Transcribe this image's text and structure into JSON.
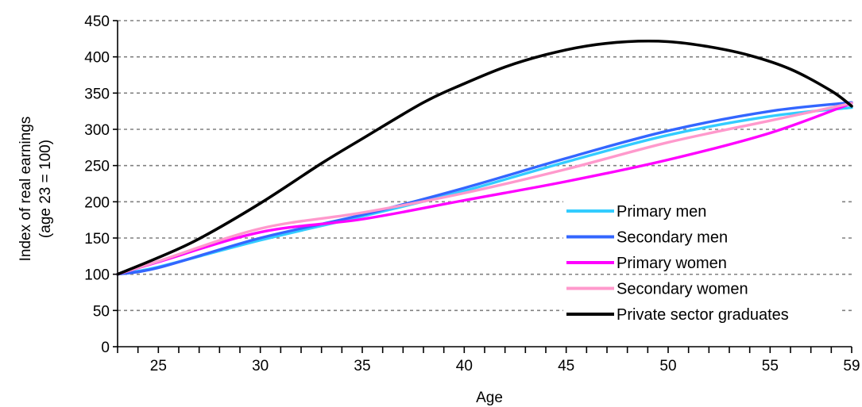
{
  "chart_data": {
    "type": "line",
    "title": "",
    "xlabel": "Age",
    "ylabel": [
      "Index of real earnings",
      "(age 23 = 100)"
    ],
    "xlim": [
      23,
      59
    ],
    "ylim": [
      0,
      450
    ],
    "x_ticks": [
      25,
      30,
      35,
      40,
      45,
      50,
      55,
      59
    ],
    "y_ticks": [
      0,
      50,
      100,
      150,
      200,
      250,
      300,
      350,
      400,
      450
    ],
    "grid": "horizontal-dotted",
    "legend_position": "bottom-right",
    "series": [
      {
        "name": "Primary men",
        "color": "#33ccff",
        "points": [
          [
            23,
            100
          ],
          [
            25,
            110
          ],
          [
            30,
            147
          ],
          [
            35,
            180
          ],
          [
            40,
            215
          ],
          [
            45,
            255
          ],
          [
            50,
            292
          ],
          [
            55,
            318
          ],
          [
            59,
            330
          ]
        ]
      },
      {
        "name": "Secondary men",
        "color": "#3366ff",
        "points": [
          [
            23,
            100
          ],
          [
            25,
            109
          ],
          [
            30,
            150
          ],
          [
            35,
            182
          ],
          [
            40,
            219
          ],
          [
            45,
            260
          ],
          [
            50,
            298
          ],
          [
            55,
            325
          ],
          [
            59,
            337
          ]
        ]
      },
      {
        "name": "Primary women",
        "color": "#ff00ff",
        "points": [
          [
            23,
            100
          ],
          [
            25,
            117
          ],
          [
            30,
            158
          ],
          [
            35,
            176
          ],
          [
            40,
            202
          ],
          [
            45,
            228
          ],
          [
            50,
            258
          ],
          [
            55,
            295
          ],
          [
            59,
            336
          ]
        ]
      },
      {
        "name": "Secondary women",
        "color": "#ff99cc",
        "points": [
          [
            23,
            100
          ],
          [
            25,
            118
          ],
          [
            30,
            163
          ],
          [
            35,
            185
          ],
          [
            40,
            212
          ],
          [
            45,
            245
          ],
          [
            50,
            282
          ],
          [
            55,
            312
          ],
          [
            59,
            336
          ]
        ]
      },
      {
        "name": "Private sector graduates",
        "color": "#000000",
        "points": [
          [
            23,
            100
          ],
          [
            25,
            123
          ],
          [
            27,
            149
          ],
          [
            30,
            198
          ],
          [
            33,
            253
          ],
          [
            35,
            287
          ],
          [
            38,
            337
          ],
          [
            40,
            363
          ],
          [
            42,
            386
          ],
          [
            44,
            403
          ],
          [
            46,
            415
          ],
          [
            48,
            421
          ],
          [
            50,
            421
          ],
          [
            52,
            414
          ],
          [
            54,
            402
          ],
          [
            56,
            383
          ],
          [
            58,
            353
          ],
          [
            59,
            332
          ]
        ]
      }
    ]
  }
}
